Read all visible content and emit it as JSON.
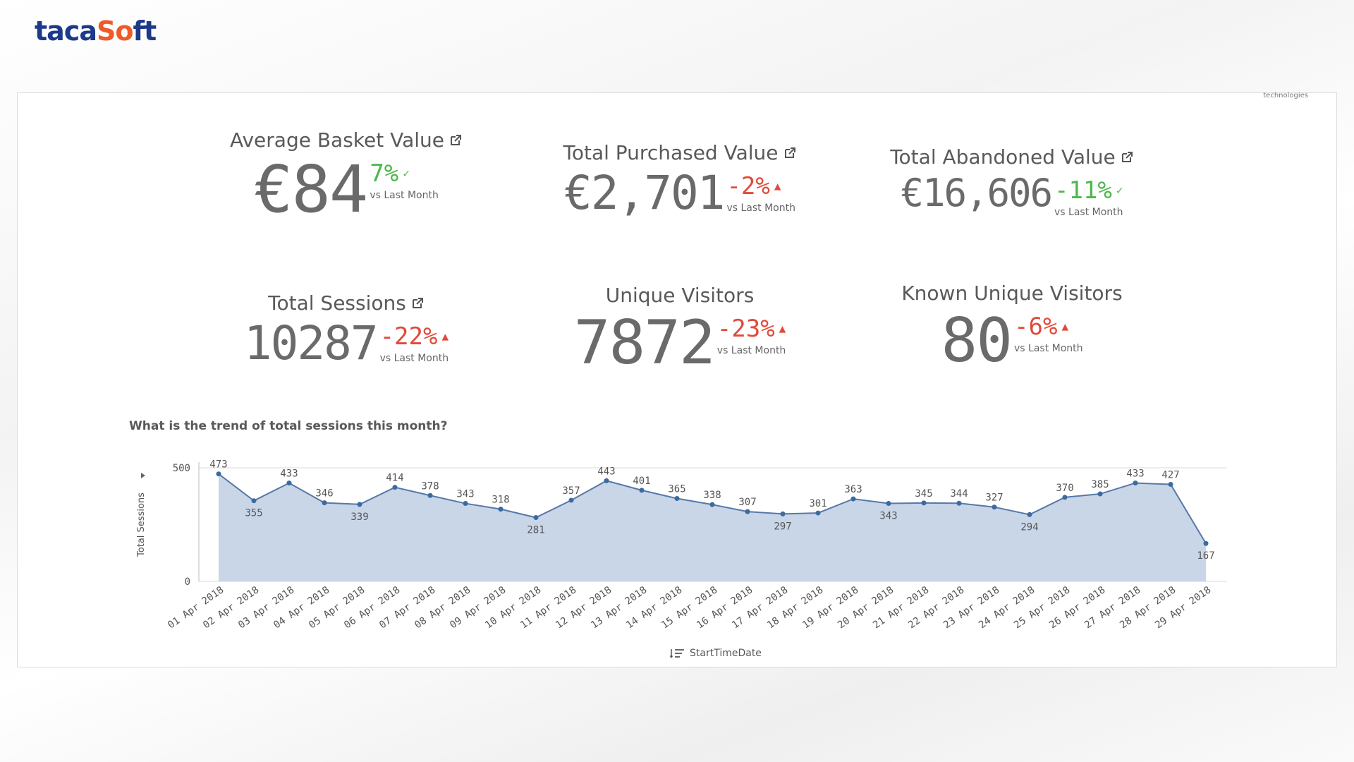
{
  "brand": {
    "prefix": "taca",
    "accent": "S",
    "o_mark": "o",
    "suffix": "ft"
  },
  "panel": {
    "corner_note": "technologies"
  },
  "kpis": [
    {
      "title": "Average Basket Value",
      "value": "€84",
      "delta": "7%",
      "trend": "up-good",
      "vs": "vs Last Month",
      "has_link": true
    },
    {
      "title": "Total Purchased Value",
      "value": "€2,701",
      "delta": "-2%",
      "trend": "down-bad",
      "vs": "vs Last Month",
      "has_link": true
    },
    {
      "title": "Total Abandoned Value",
      "value": "€16,606",
      "delta": "-11%",
      "trend": "down-good",
      "vs": "vs Last Month",
      "has_link": true
    },
    {
      "title": "Total Sessions",
      "value": "10287",
      "delta": "-22%",
      "trend": "down-bad",
      "vs": "vs Last Month",
      "has_link": true
    },
    {
      "title": "Unique Visitors",
      "value": "7872",
      "delta": "-23%",
      "trend": "down-bad",
      "vs": "vs Last Month",
      "has_link": false
    },
    {
      "title": "Known Unique Visitors",
      "value": "80",
      "delta": "-6%",
      "trend": "down-bad",
      "vs": "vs Last Month",
      "has_link": false
    }
  ],
  "chart_question": "What is the trend of total sessions this month?",
  "colors": {
    "positive": "#4cb849",
    "negative": "#e04a3a",
    "area_fill": "#c8d6e8",
    "line": "#5778a8",
    "point": "#3b6aa0"
  },
  "chart_data": {
    "type": "area",
    "title": "What is the trend of total sessions this month?",
    "xlabel": "StartTimeDate",
    "ylabel": "Total Sessions",
    "ylim": [
      0,
      500
    ],
    "yticks": [
      0,
      500
    ],
    "categories": [
      "01 Apr 2018",
      "02 Apr 2018",
      "03 Apr 2018",
      "04 Apr 2018",
      "05 Apr 2018",
      "06 Apr 2018",
      "07 Apr 2018",
      "08 Apr 2018",
      "09 Apr 2018",
      "10 Apr 2018",
      "11 Apr 2018",
      "12 Apr 2018",
      "13 Apr 2018",
      "14 Apr 2018",
      "15 Apr 2018",
      "16 Apr 2018",
      "17 Apr 2018",
      "18 Apr 2018",
      "19 Apr 2018",
      "20 Apr 2018",
      "21 Apr 2018",
      "22 Apr 2018",
      "23 Apr 2018",
      "24 Apr 2018",
      "25 Apr 2018",
      "26 Apr 2018",
      "27 Apr 2018",
      "28 Apr 2018",
      "29 Apr 2018"
    ],
    "series": [
      {
        "values": [
          473,
          355,
          433,
          346,
          339,
          414,
          378,
          343,
          318,
          281,
          357,
          443,
          401,
          365,
          338,
          307,
          297,
          301,
          363,
          343,
          345,
          344,
          327,
          294,
          370,
          385,
          433,
          427,
          167
        ]
      }
    ],
    "grid": true
  }
}
